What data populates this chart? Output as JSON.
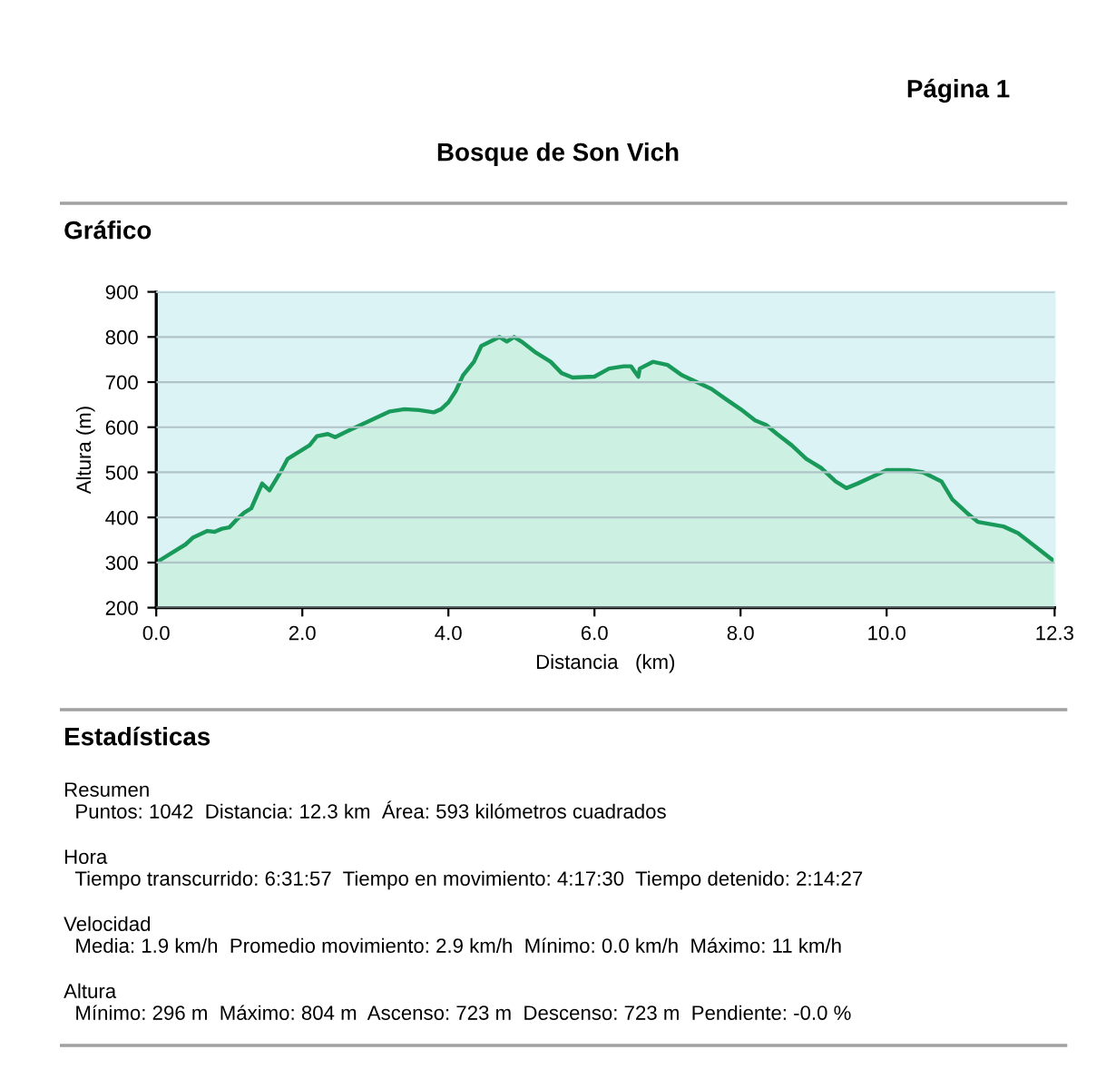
{
  "chart_data": {
    "type": "area",
    "title": "Bosque de Son Vich",
    "xlabel": "Distancia   (km)",
    "ylabel": "Altura (m)",
    "annotations": [
      "Página 1",
      "Gráfico",
      "Estadísticas",
      "Resumen",
      "Puntos: 1042  Distancia: 12.3 km  Área: 593 kilómetros cuadrados",
      "Hora",
      "Tiempo transcurrido: 6:31:57  Tiempo en movimiento: 4:17:30  Tiempo detenido: 2:14:27",
      "Velocidad",
      "Media: 1.9 km/h  Promedio movimiento: 2.9 km/h  Mínimo: 0.0 km/h  Máximo: 11 km/h",
      "Altura",
      "Mínimo: 296 m  Máximo: 804 m  Ascenso: 723 m  Descenso: 723 m  Pendiente: -0.0 %"
    ],
    "x": [
      0,
      0.2,
      0.4,
      0.5,
      0.7,
      0.8,
      0.9,
      1.0,
      1.1,
      1.2,
      1.3,
      1.45,
      1.55,
      1.7,
      1.8,
      1.95,
      2.1,
      2.2,
      2.35,
      2.45,
      2.6,
      2.8,
      3.0,
      3.2,
      3.4,
      3.6,
      3.8,
      3.9,
      4.0,
      4.1,
      4.2,
      4.35,
      4.45,
      4.6,
      4.7,
      4.8,
      4.9,
      5.0,
      5.2,
      5.4,
      5.55,
      5.7,
      6.0,
      6.2,
      6.4,
      6.5,
      6.6,
      6.62,
      6.8,
      7.0,
      7.2,
      7.4,
      7.6,
      7.8,
      8.0,
      8.2,
      8.35,
      8.5,
      8.7,
      8.9,
      9.1,
      9.3,
      9.45,
      9.6,
      9.8,
      10.0,
      10.3,
      10.5,
      10.75,
      10.9,
      11.1,
      11.25,
      11.6,
      11.8,
      12.0,
      12.3
    ],
    "series": [
      {
        "color": "#1a9a5a",
        "values": [
          300,
          320,
          340,
          355,
          370,
          368,
          375,
          378,
          395,
          410,
          420,
          475,
          460,
          500,
          530,
          545,
          560,
          580,
          585,
          578,
          590,
          605,
          620,
          635,
          640,
          638,
          633,
          640,
          655,
          680,
          715,
          745,
          780,
          792,
          800,
          790,
          800,
          790,
          765,
          745,
          720,
          710,
          712,
          730,
          735,
          735,
          712,
          730,
          745,
          738,
          715,
          700,
          685,
          662,
          640,
          615,
          605,
          585,
          560,
          530,
          510,
          480,
          465,
          475,
          490,
          505,
          505,
          500,
          480,
          440,
          410,
          390,
          380,
          365,
          340,
          302
        ]
      }
    ],
    "xlim": [
      0,
      12.3
    ],
    "ylim": [
      200,
      900
    ],
    "xticks": [
      {
        "value": 0,
        "label": "0.0"
      },
      {
        "value": 2,
        "label": "2.0"
      },
      {
        "value": 4,
        "label": "4.0"
      },
      {
        "value": 6,
        "label": "6.0"
      },
      {
        "value": 8,
        "label": "8.0"
      },
      {
        "value": 10,
        "label": "10.0"
      },
      {
        "value": 12.3,
        "label": "12.3"
      }
    ],
    "yticks": [
      200,
      300,
      400,
      500,
      600,
      700,
      800,
      900
    ],
    "grid": "y"
  }
}
